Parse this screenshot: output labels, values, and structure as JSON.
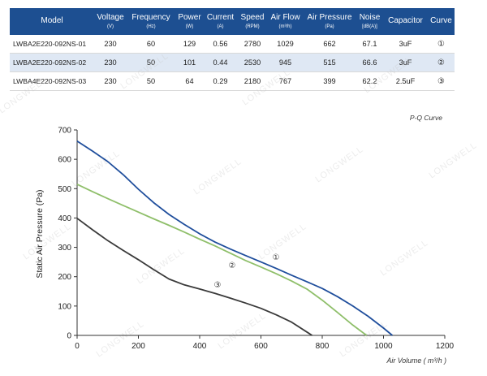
{
  "table": {
    "headers": [
      {
        "label": "Model",
        "unit": ""
      },
      {
        "label": "Voltage",
        "unit": "(V)"
      },
      {
        "label": "Frequency",
        "unit": "(Hz)"
      },
      {
        "label": "Power",
        "unit": "(W)"
      },
      {
        "label": "Current",
        "unit": "(A)"
      },
      {
        "label": "Speed",
        "unit": "(RPM)"
      },
      {
        "label": "Air Flow",
        "unit": "(m³/h)"
      },
      {
        "label": "Air Pressure",
        "unit": "(Pa)"
      },
      {
        "label": "Noise",
        "unit": "[dB(A)]"
      },
      {
        "label": "Capacitor",
        "unit": ""
      },
      {
        "label": "Curve",
        "unit": ""
      }
    ],
    "rows": [
      [
        "LWBA2E220-092NS-01",
        "230",
        "60",
        "129",
        "0.56",
        "2780",
        "1029",
        "662",
        "67.1",
        "3uF",
        "①"
      ],
      [
        "LWBA2E220-092NS-02",
        "230",
        "50",
        "101",
        "0.44",
        "2530",
        "945",
        "515",
        "66.6",
        "3uF",
        "②"
      ],
      [
        "LWBA4E220-092NS-03",
        "230",
        "50",
        "64",
        "0.29",
        "2180",
        "767",
        "399",
        "62.2",
        "2.5uF",
        "③"
      ]
    ]
  },
  "watermark": "LONGWELL",
  "colors": {
    "header_bg": "#1d4f91",
    "alt_row_bg": "#dfe8f4",
    "curve_1": "#1f4e9c",
    "curve_2": "#8fbf6a",
    "curve_3": "#3a3a3a"
  },
  "chart_data": {
    "type": "line",
    "title": "P-Q Curve",
    "xlabel": "Air Volume ( m³/h )",
    "ylabel": "Static Air Pressure  (Pa)",
    "xlim": [
      0,
      1200
    ],
    "ylim": [
      0,
      700
    ],
    "xticks": [
      0,
      200,
      400,
      600,
      800,
      1000,
      1200
    ],
    "yticks": [
      0,
      100,
      200,
      300,
      400,
      500,
      600,
      700
    ],
    "grid": false,
    "series": [
      {
        "name": "①",
        "color": "#1f4e9c",
        "x": [
          0,
          50,
          100,
          150,
          200,
          250,
          300,
          350,
          400,
          450,
          500,
          550,
          600,
          650,
          700,
          750,
          800,
          850,
          900,
          950,
          1000,
          1029
        ],
        "y": [
          662,
          628,
          592,
          548,
          498,
          452,
          412,
          378,
          346,
          318,
          294,
          272,
          250,
          228,
          205,
          183,
          160,
          132,
          100,
          65,
          25,
          0
        ]
      },
      {
        "name": "②",
        "color": "#8fbf6a",
        "x": [
          0,
          50,
          100,
          150,
          200,
          250,
          300,
          350,
          400,
          450,
          500,
          550,
          600,
          650,
          700,
          750,
          800,
          850,
          900,
          945
        ],
        "y": [
          515,
          490,
          466,
          443,
          420,
          397,
          375,
          352,
          328,
          305,
          280,
          255,
          233,
          210,
          185,
          158,
          120,
          78,
          35,
          0
        ]
      },
      {
        "name": "③",
        "color": "#3a3a3a",
        "x": [
          0,
          50,
          100,
          150,
          200,
          250,
          300,
          350,
          400,
          450,
          500,
          550,
          600,
          650,
          700,
          767
        ],
        "y": [
          399,
          360,
          323,
          290,
          258,
          224,
          192,
          172,
          158,
          143,
          127,
          110,
          92,
          70,
          45,
          0
        ]
      }
    ]
  }
}
